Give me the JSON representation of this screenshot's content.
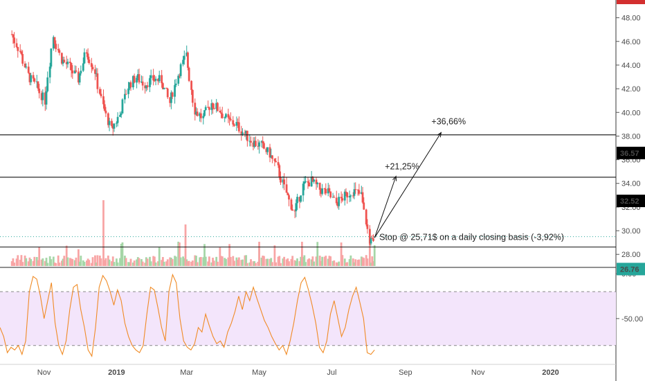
{
  "chart_data": [
    {
      "type": "candlestick",
      "title": "",
      "xlabel": "",
      "ylabel": "",
      "ylim": [
        26.9,
        49.5
      ],
      "x_tick_labels": [
        "Nov",
        "2019",
        "Mar",
        "May",
        "Jul",
        "Sep",
        "Nov",
        "2020"
      ],
      "y_tick_labels": [
        "48.00",
        "46.00",
        "44.00",
        "42.00",
        "40.00",
        "38.00",
        "36.00",
        "34.00",
        "32.00",
        "30.00",
        "28.00"
      ],
      "y_ticks": [
        48,
        46,
        44,
        42,
        40,
        38,
        36,
        34,
        32,
        30,
        28
      ],
      "price_labels": [
        {
          "value": 36.57,
          "text": "36.57",
          "color": "#000000"
        },
        {
          "value": 32.52,
          "text": "32.52",
          "color": "#000000"
        },
        {
          "value": 26.76,
          "text": "26.76",
          "color": "#26a69a"
        }
      ],
      "horizontal_levels": [
        38.1,
        34.52,
        28.62
      ],
      "dotted_level": 29.5,
      "series": [
        {
          "type": "candles",
          "close_points": [
            [
              "2018-10-05",
              46.6
            ],
            [
              "2018-10-12",
              45.2
            ],
            [
              "2018-10-19",
              43.1
            ],
            [
              "2018-10-26",
              42.2
            ],
            [
              "2018-11-02",
              41.0
            ],
            [
              "2018-11-09",
              46.5
            ],
            [
              "2018-11-16",
              44.5
            ],
            [
              "2018-11-23",
              43.8
            ],
            [
              "2018-11-30",
              42.8
            ],
            [
              "2018-12-07",
              45.2
            ],
            [
              "2018-12-14",
              43.5
            ],
            [
              "2018-12-21",
              40.5
            ],
            [
              "2018-12-28",
              38.5
            ],
            [
              "2019-01-04",
              39.8
            ],
            [
              "2019-01-11",
              42.2
            ],
            [
              "2019-01-18",
              43.0
            ],
            [
              "2019-01-25",
              42.4
            ],
            [
              "2019-02-01",
              42.8
            ],
            [
              "2019-02-08",
              42.7
            ],
            [
              "2019-02-15",
              40.8
            ],
            [
              "2019-02-22",
              43.2
            ],
            [
              "2019-03-01",
              44.8
            ],
            [
              "2019-03-08",
              40.2
            ],
            [
              "2019-03-15",
              39.5
            ],
            [
              "2019-03-22",
              40.8
            ],
            [
              "2019-03-29",
              40.2
            ],
            [
              "2019-04-05",
              39.3
            ],
            [
              "2019-04-12",
              39.0
            ],
            [
              "2019-04-19",
              38.2
            ],
            [
              "2019-04-26",
              37.5
            ],
            [
              "2019-05-03",
              37.2
            ],
            [
              "2019-05-10",
              36.5
            ],
            [
              "2019-05-17",
              35.2
            ],
            [
              "2019-05-24",
              33.2
            ],
            [
              "2019-05-31",
              31.5
            ],
            [
              "2019-06-07",
              33.8
            ],
            [
              "2019-06-14",
              34.2
            ],
            [
              "2019-06-21",
              33.5
            ],
            [
              "2019-06-28",
              33.2
            ],
            [
              "2019-07-05",
              32.3
            ],
            [
              "2019-07-12",
              32.9
            ],
            [
              "2019-07-19",
              33.4
            ],
            [
              "2019-07-26",
              33.0
            ],
            [
              "2019-08-02",
              29.3
            ],
            [
              "2019-08-06",
              28.8
            ]
          ]
        }
      ],
      "annotations": [
        {
          "text": "+36,66%",
          "from": [
            "2019-08-06",
            29.4
          ],
          "to": [
            "2019-10-01",
            38.3
          ]
        },
        {
          "text": "+21,25%",
          "from": [
            "2019-08-06",
            29.4
          ],
          "to": [
            "2019-08-24",
            34.6
          ]
        },
        {
          "text": "Stop @ 25,71$ on a daily closing basis (-3,92%)"
        }
      ],
      "x_range": [
        "2018-09-25",
        "2020-02-25"
      ]
    },
    {
      "type": "line",
      "title": "",
      "y_tick_labels": [
        "0.00",
        "-50.00"
      ],
      "ylim": [
        -98,
        4
      ],
      "band": [
        -80,
        -20
      ],
      "series": [
        {
          "values": [
            -60,
            -70,
            -88,
            -82,
            -85,
            -80,
            -90,
            -75,
            -20,
            -3,
            -6,
            -25,
            -50,
            -30,
            -10,
            -55,
            -80,
            -90,
            -75,
            -40,
            -15,
            -12,
            -40,
            -60,
            -85,
            -92,
            -60,
            -15,
            -2,
            -8,
            -20,
            -35,
            -18,
            -30,
            -55,
            -70,
            -80,
            -85,
            -88,
            -80,
            -45,
            -15,
            -18,
            -38,
            -60,
            -75,
            -20,
            -1,
            -10,
            -50,
            -75,
            -82,
            -85,
            -78,
            -60,
            -65,
            -45,
            -58,
            -70,
            -78,
            -75,
            -82,
            -65,
            -55,
            -42,
            -25,
            -40,
            -20,
            -30,
            -15,
            -28,
            -40,
            -52,
            -60,
            -70,
            -78,
            -85,
            -80,
            -90,
            -75,
            -55,
            -30,
            -10,
            -4,
            -18,
            -35,
            -55,
            -82,
            -88,
            -75,
            -45,
            -30,
            -50,
            -70,
            -60,
            -40,
            -25,
            -15,
            -32,
            -50,
            -88,
            -90,
            -85
          ]
        }
      ]
    }
  ]
}
